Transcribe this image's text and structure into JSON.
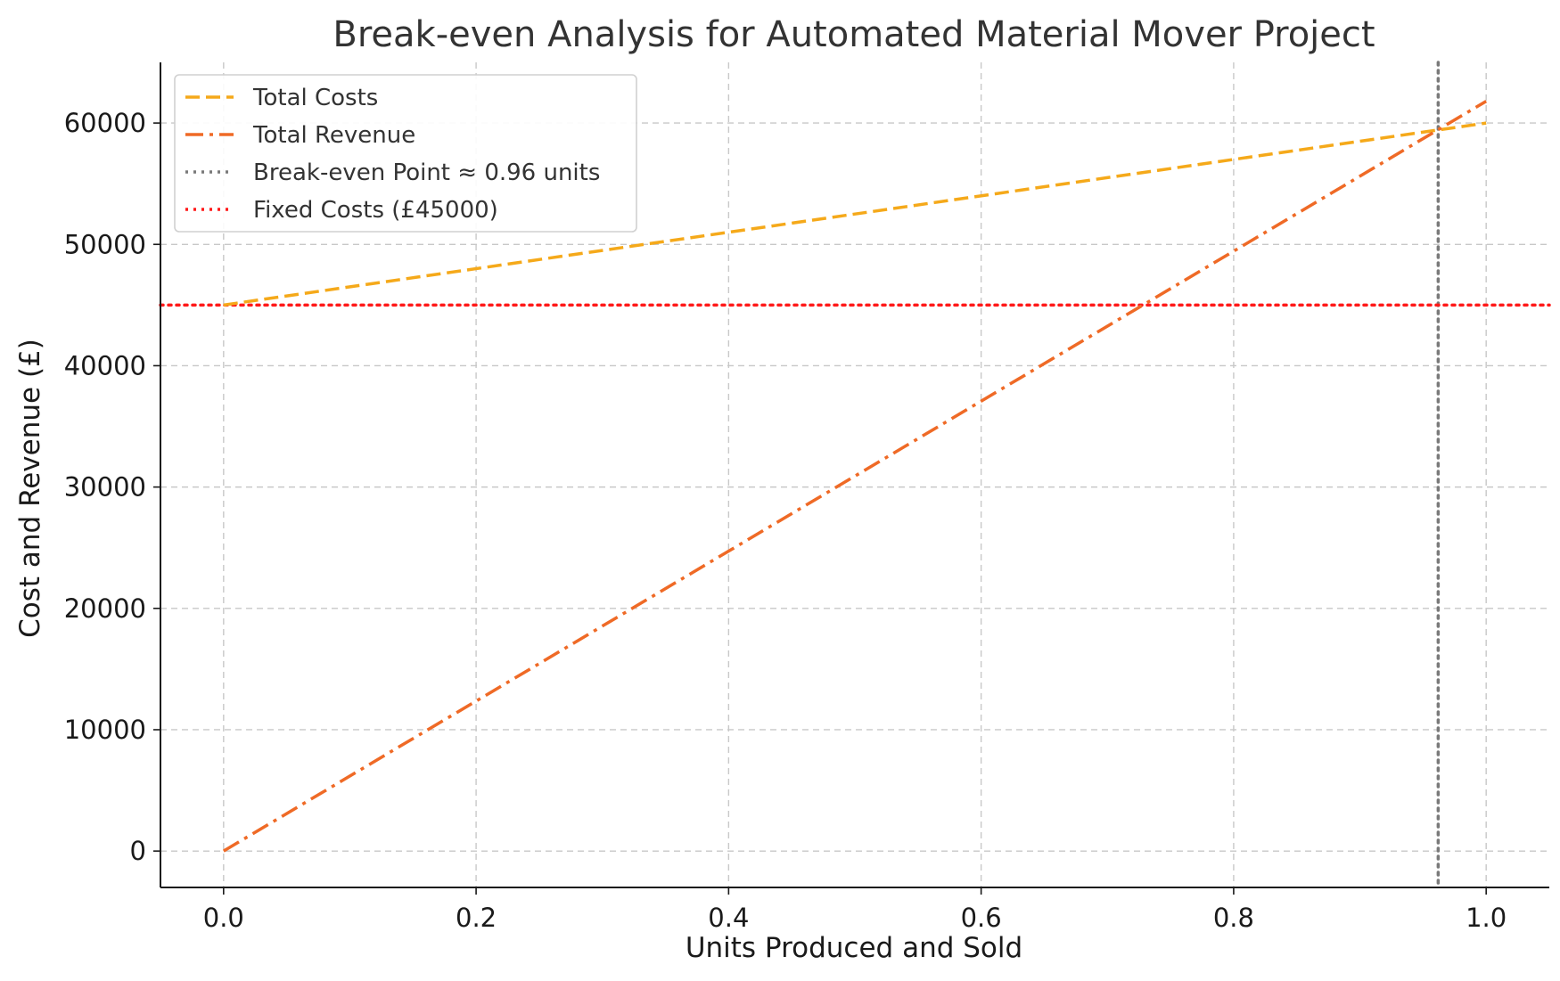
{
  "chart_data": {
    "type": "line",
    "title": "Break-even Analysis for Automated Material Mover Project",
    "xlabel": "Units Produced and Sold",
    "ylabel": "Cost and Revenue (£)",
    "xlim": [
      -0.05,
      1.05
    ],
    "ylim": [
      -3000,
      65000
    ],
    "xticks": [
      0.0,
      0.2,
      0.4,
      0.6,
      0.8,
      1.0
    ],
    "xtick_labels": [
      "0.0",
      "0.2",
      "0.4",
      "0.6",
      "0.8",
      "1.0"
    ],
    "yticks": [
      0,
      10000,
      20000,
      30000,
      40000,
      50000,
      60000
    ],
    "ytick_labels": [
      "0",
      "10000",
      "20000",
      "30000",
      "40000",
      "50000",
      "60000"
    ],
    "grid": true,
    "legend_position": "top-left",
    "series": [
      {
        "name": "Total Costs",
        "color": "#f5a91a",
        "style": "dashed",
        "x": [
          0.0,
          1.0
        ],
        "y": [
          45000,
          60000
        ]
      },
      {
        "name": "Total Revenue",
        "color": "#ef6a26",
        "style": "dashdot",
        "x": [
          0.0,
          1.0
        ],
        "y": [
          0,
          61800
        ]
      }
    ],
    "reference_lines": [
      {
        "name": "Break-even Point ≈ 0.96 units",
        "orientation": "vertical",
        "value": 0.962,
        "color": "#7a7a7a",
        "style": "dotted"
      },
      {
        "name": "Fixed Costs (£45000)",
        "orientation": "horizontal",
        "value": 45000,
        "color": "#ff1a1a",
        "style": "dotted"
      }
    ],
    "legend": [
      "Total Costs",
      "Total Revenue",
      "Break-even Point ≈ 0.96 units",
      "Fixed Costs (£45000)"
    ]
  }
}
